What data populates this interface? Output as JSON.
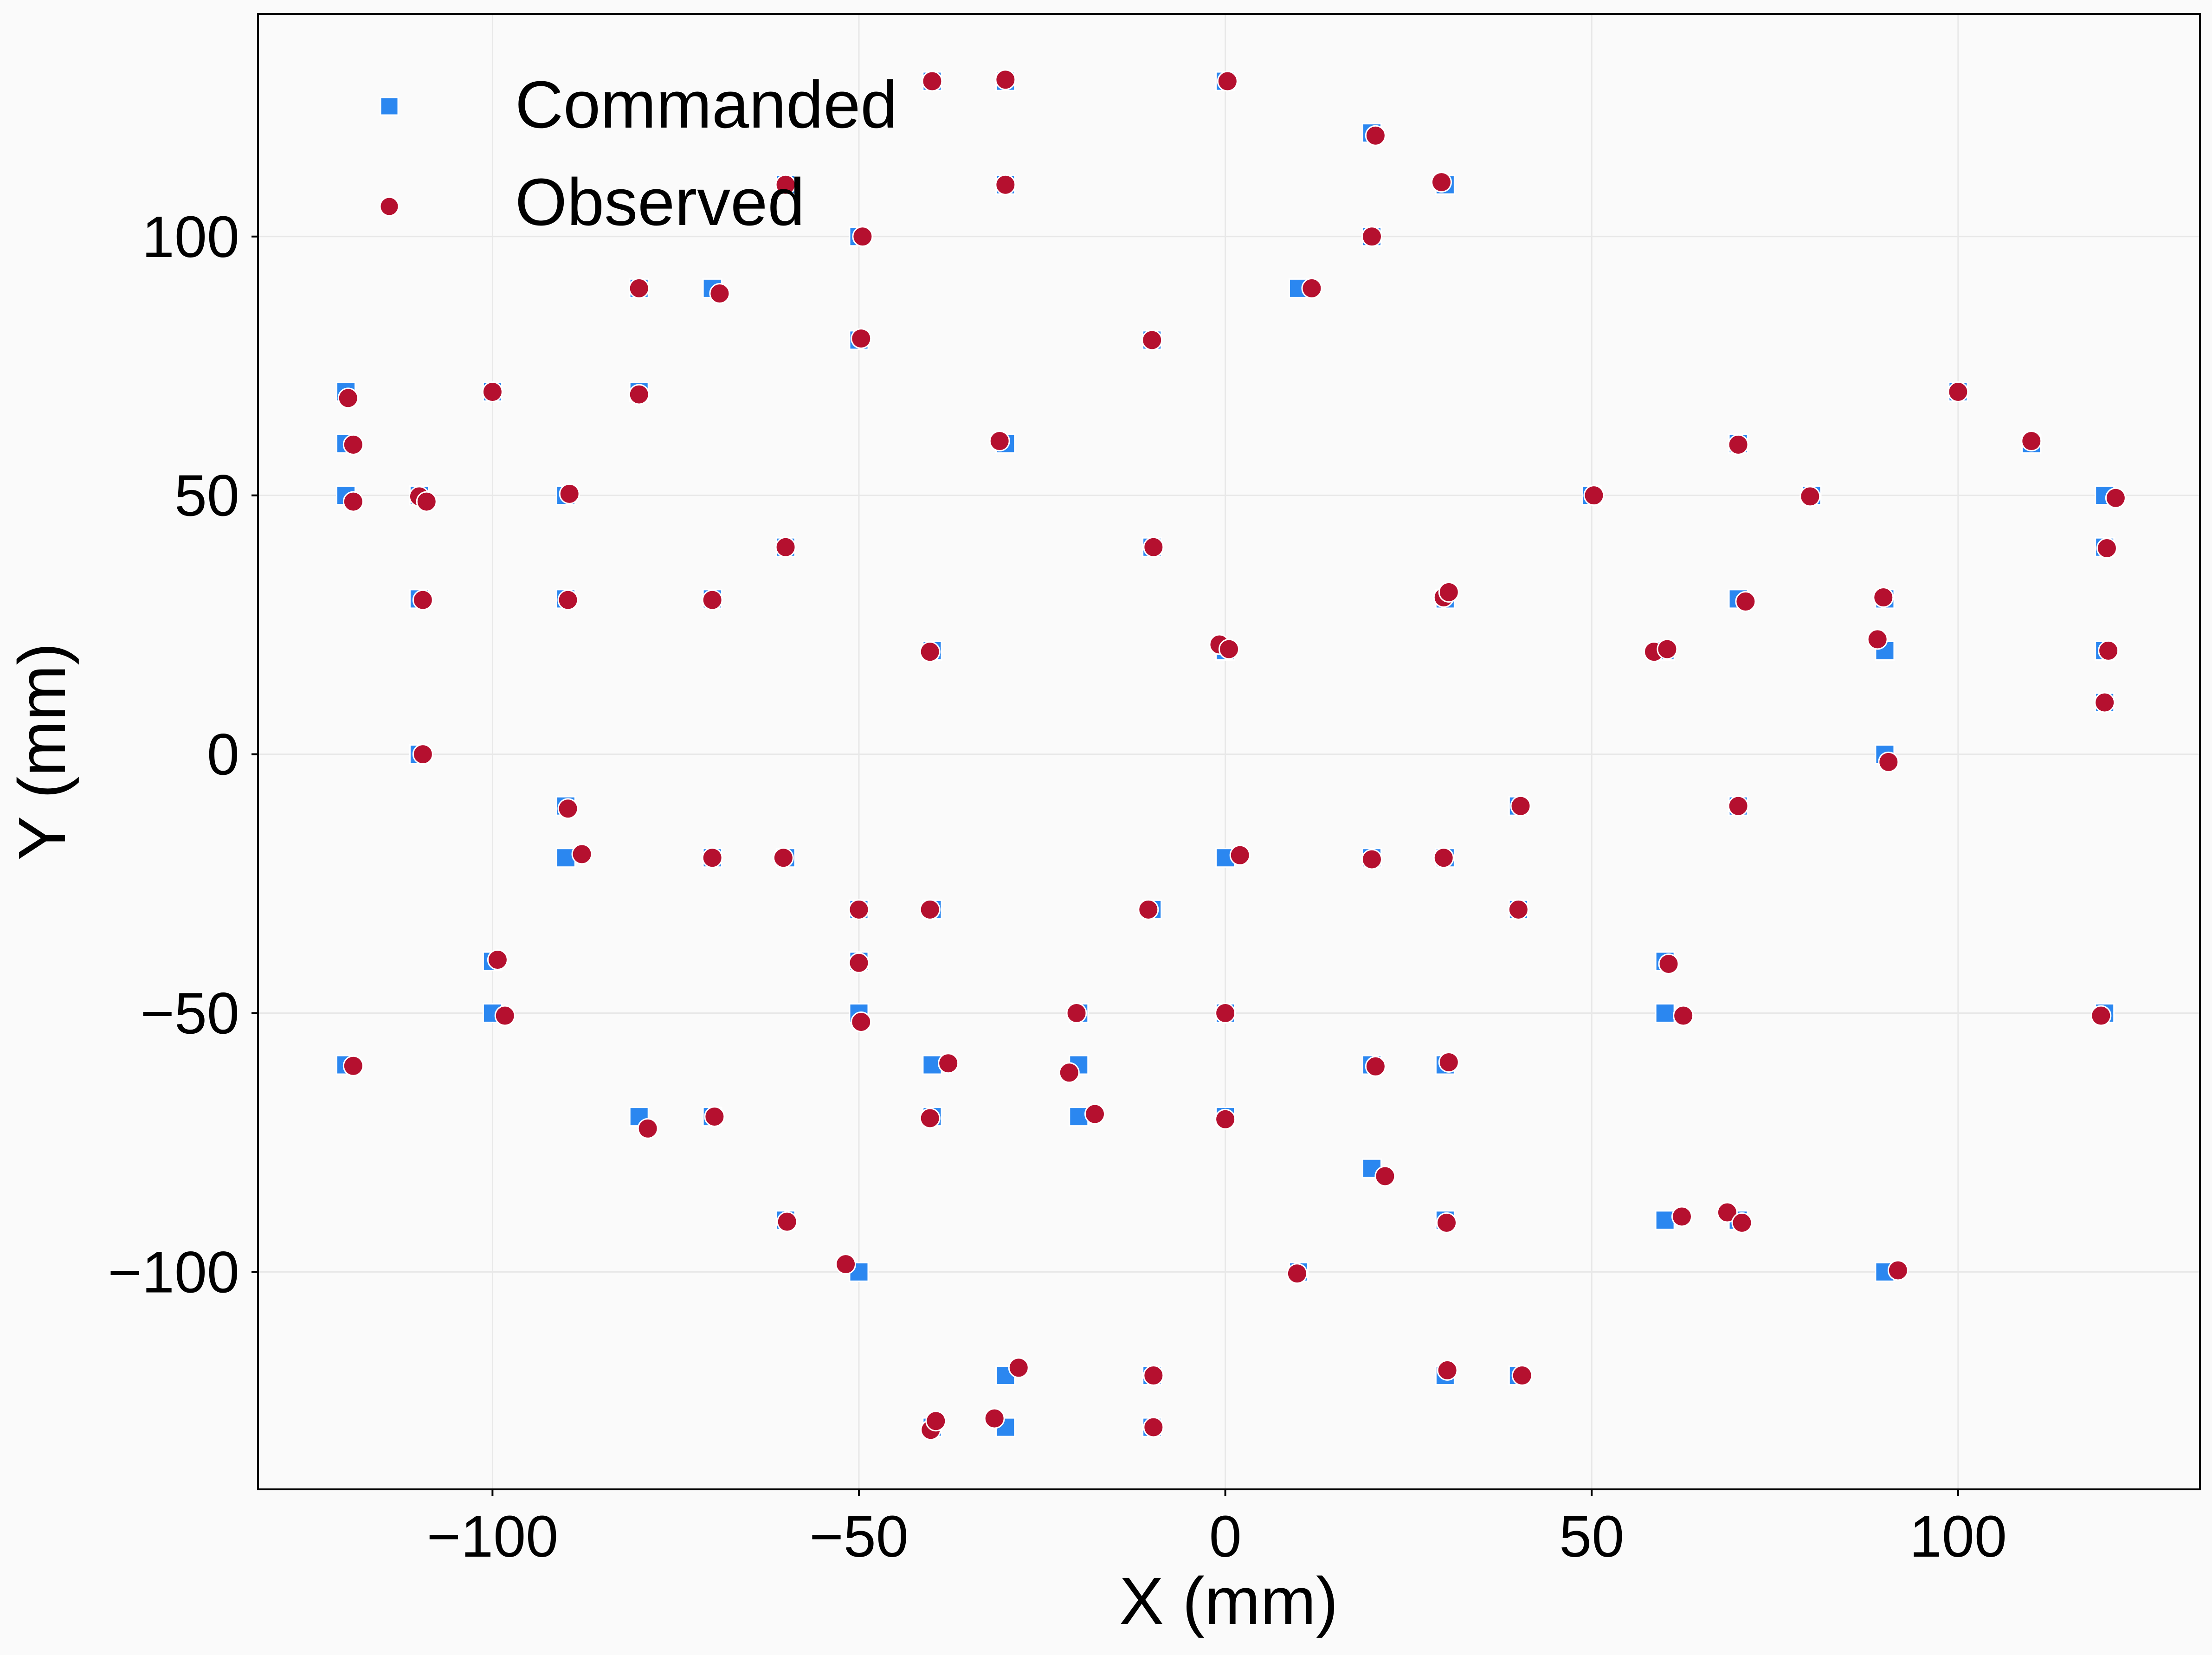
{
  "chart_data": {
    "type": "scatter",
    "xlabel": "X (mm)",
    "ylabel": "Y (mm)",
    "xlim": [
      -132,
      133
    ],
    "ylim": [
      -142,
      143
    ],
    "xticks": [
      -100,
      -50,
      0,
      50,
      100
    ],
    "yticks": [
      -100,
      -50,
      0,
      50,
      100
    ],
    "tick_labels_x": [
      "−100",
      "−50",
      "0",
      "50",
      "100"
    ],
    "tick_labels_y": [
      "−100",
      "−50",
      "0",
      "50",
      "100"
    ],
    "grid": true,
    "legend_position": "top-left",
    "series": [
      {
        "name": "Commanded",
        "marker": "square",
        "color": "#2b87f0",
        "points": [
          [
            -40,
            130
          ],
          [
            -30,
            130
          ],
          [
            0,
            130
          ],
          [
            20,
            120
          ],
          [
            -60,
            110
          ],
          [
            -30,
            110
          ],
          [
            30,
            110
          ],
          [
            -50,
            100
          ],
          [
            20,
            100
          ],
          [
            -80,
            90
          ],
          [
            -70,
            90
          ],
          [
            10,
            90
          ],
          [
            -50,
            80
          ],
          [
            -10,
            80
          ],
          [
            -120,
            70
          ],
          [
            -100,
            70
          ],
          [
            -80,
            70
          ],
          [
            100,
            70
          ],
          [
            -120,
            60
          ],
          [
            -30,
            60
          ],
          [
            70,
            60
          ],
          [
            110,
            60
          ],
          [
            -120,
            50
          ],
          [
            -110,
            50
          ],
          [
            -90,
            50
          ],
          [
            50,
            50
          ],
          [
            80,
            50
          ],
          [
            120,
            50
          ],
          [
            -60,
            40
          ],
          [
            -10,
            40
          ],
          [
            120,
            40
          ],
          [
            -110,
            30
          ],
          [
            -90,
            30
          ],
          [
            -70,
            30
          ],
          [
            30,
            30
          ],
          [
            70,
            30
          ],
          [
            90,
            30
          ],
          [
            -40,
            20
          ],
          [
            0,
            20
          ],
          [
            60,
            20
          ],
          [
            90,
            20
          ],
          [
            120,
            20
          ],
          [
            120,
            10
          ],
          [
            -110,
            0
          ],
          [
            90,
            0
          ],
          [
            -90,
            -10
          ],
          [
            40,
            -10
          ],
          [
            70,
            -10
          ],
          [
            -90,
            -20
          ],
          [
            -70,
            -20
          ],
          [
            -60,
            -20
          ],
          [
            0,
            -20
          ],
          [
            20,
            -20
          ],
          [
            30,
            -20
          ],
          [
            -50,
            -30
          ],
          [
            -40,
            -30
          ],
          [
            -10,
            -30
          ],
          [
            40,
            -30
          ],
          [
            -100,
            -40
          ],
          [
            -50,
            -40
          ],
          [
            60,
            -40
          ],
          [
            -100,
            -50
          ],
          [
            -50,
            -50
          ],
          [
            -20,
            -50
          ],
          [
            0,
            -50
          ],
          [
            60,
            -50
          ],
          [
            120,
            -50
          ],
          [
            -120,
            -60
          ],
          [
            -40,
            -60
          ],
          [
            -20,
            -60
          ],
          [
            20,
            -60
          ],
          [
            30,
            -60
          ],
          [
            -80,
            -70
          ],
          [
            -70,
            -70
          ],
          [
            -40,
            -70
          ],
          [
            -20,
            -70
          ],
          [
            0,
            -70
          ],
          [
            20,
            -80
          ],
          [
            -60,
            -90
          ],
          [
            30,
            -90
          ],
          [
            60,
            -90
          ],
          [
            70,
            -90
          ],
          [
            -50,
            -100
          ],
          [
            10,
            -100
          ],
          [
            90,
            -100
          ],
          [
            -30,
            -120
          ],
          [
            -10,
            -120
          ],
          [
            30,
            -120
          ],
          [
            40,
            -120
          ],
          [
            -40,
            -130
          ],
          [
            -30,
            -130
          ],
          [
            -10,
            -130
          ]
        ]
      },
      {
        "name": "Observed",
        "marker": "circle",
        "color": "#b5102f",
        "points": [
          [
            -40,
            130
          ],
          [
            -30,
            130.3
          ],
          [
            0.3,
            130
          ],
          [
            20.5,
            119.5
          ],
          [
            -60,
            110
          ],
          [
            -30,
            110
          ],
          [
            29.5,
            110.5
          ],
          [
            -49.5,
            100
          ],
          [
            20,
            100
          ],
          [
            -80,
            90
          ],
          [
            -69,
            89
          ],
          [
            11.8,
            90
          ],
          [
            -49.7,
            80.3
          ],
          [
            -10,
            80
          ],
          [
            -119.7,
            68.8
          ],
          [
            -100,
            70
          ],
          [
            -80,
            69.5
          ],
          [
            100,
            70
          ],
          [
            -119,
            59.8
          ],
          [
            -30.8,
            60.5
          ],
          [
            70,
            59.8
          ],
          [
            110,
            60.5
          ],
          [
            -119,
            48.8
          ],
          [
            -110,
            49.8
          ],
          [
            -109,
            48.8
          ],
          [
            -89.5,
            50.3
          ],
          [
            50.3,
            50
          ],
          [
            79.8,
            49.8
          ],
          [
            121.5,
            49.5
          ],
          [
            -60,
            40
          ],
          [
            -9.8,
            40
          ],
          [
            120.3,
            39.8
          ],
          [
            -109.5,
            29.8
          ],
          [
            -89.7,
            29.8
          ],
          [
            -70,
            29.8
          ],
          [
            29.8,
            30.3
          ],
          [
            30.5,
            31.3
          ],
          [
            71,
            29.5
          ],
          [
            89.8,
            30.3
          ],
          [
            -40.3,
            19.8
          ],
          [
            -0.8,
            21.2
          ],
          [
            0.5,
            20.3
          ],
          [
            58.5,
            19.8
          ],
          [
            60.3,
            20.3
          ],
          [
            89,
            22.2
          ],
          [
            120.5,
            20
          ],
          [
            120,
            10
          ],
          [
            -109.5,
            0
          ],
          [
            90.5,
            -1.5
          ],
          [
            -89.7,
            -10.5
          ],
          [
            40.3,
            -10
          ],
          [
            70,
            -10
          ],
          [
            -87.8,
            -19.3
          ],
          [
            -70,
            -20
          ],
          [
            -60.3,
            -20
          ],
          [
            2,
            -19.5
          ],
          [
            20,
            -20.3
          ],
          [
            29.8,
            -20
          ],
          [
            -50,
            -30
          ],
          [
            -40.3,
            -30
          ],
          [
            -10.5,
            -30
          ],
          [
            40,
            -30
          ],
          [
            -99.3,
            -39.7
          ],
          [
            -50,
            -40.3
          ],
          [
            60.5,
            -40.5
          ],
          [
            -98.3,
            -50.5
          ],
          [
            -49.7,
            -51.7
          ],
          [
            -20.3,
            -50
          ],
          [
            0,
            -50
          ],
          [
            62.5,
            -50.5
          ],
          [
            119.5,
            -50.5
          ],
          [
            -119,
            -60.2
          ],
          [
            -37.8,
            -59.7
          ],
          [
            -21.3,
            -61.5
          ],
          [
            20.5,
            -60.3
          ],
          [
            30.5,
            -59.5
          ],
          [
            -78.8,
            -72.3
          ],
          [
            -69.7,
            -70
          ],
          [
            -40.3,
            -70.3
          ],
          [
            -17.8,
            -69.5
          ],
          [
            0,
            -70.5
          ],
          [
            21.8,
            -81.5
          ],
          [
            -59.8,
            -90.3
          ],
          [
            30.2,
            -90.5
          ],
          [
            62.3,
            -89.3
          ],
          [
            68.5,
            -88.5
          ],
          [
            70.5,
            -90.5
          ],
          [
            -51.8,
            -98.5
          ],
          [
            9.8,
            -100.3
          ],
          [
            91.8,
            -99.7
          ],
          [
            -28.2,
            -118.5
          ],
          [
            -9.8,
            -120
          ],
          [
            30.3,
            -119
          ],
          [
            40.5,
            -120
          ],
          [
            -40.2,
            -130.5
          ],
          [
            -39.5,
            -128.8
          ],
          [
            -31.5,
            -128.3
          ],
          [
            -9.8,
            -130
          ]
        ]
      }
    ]
  }
}
